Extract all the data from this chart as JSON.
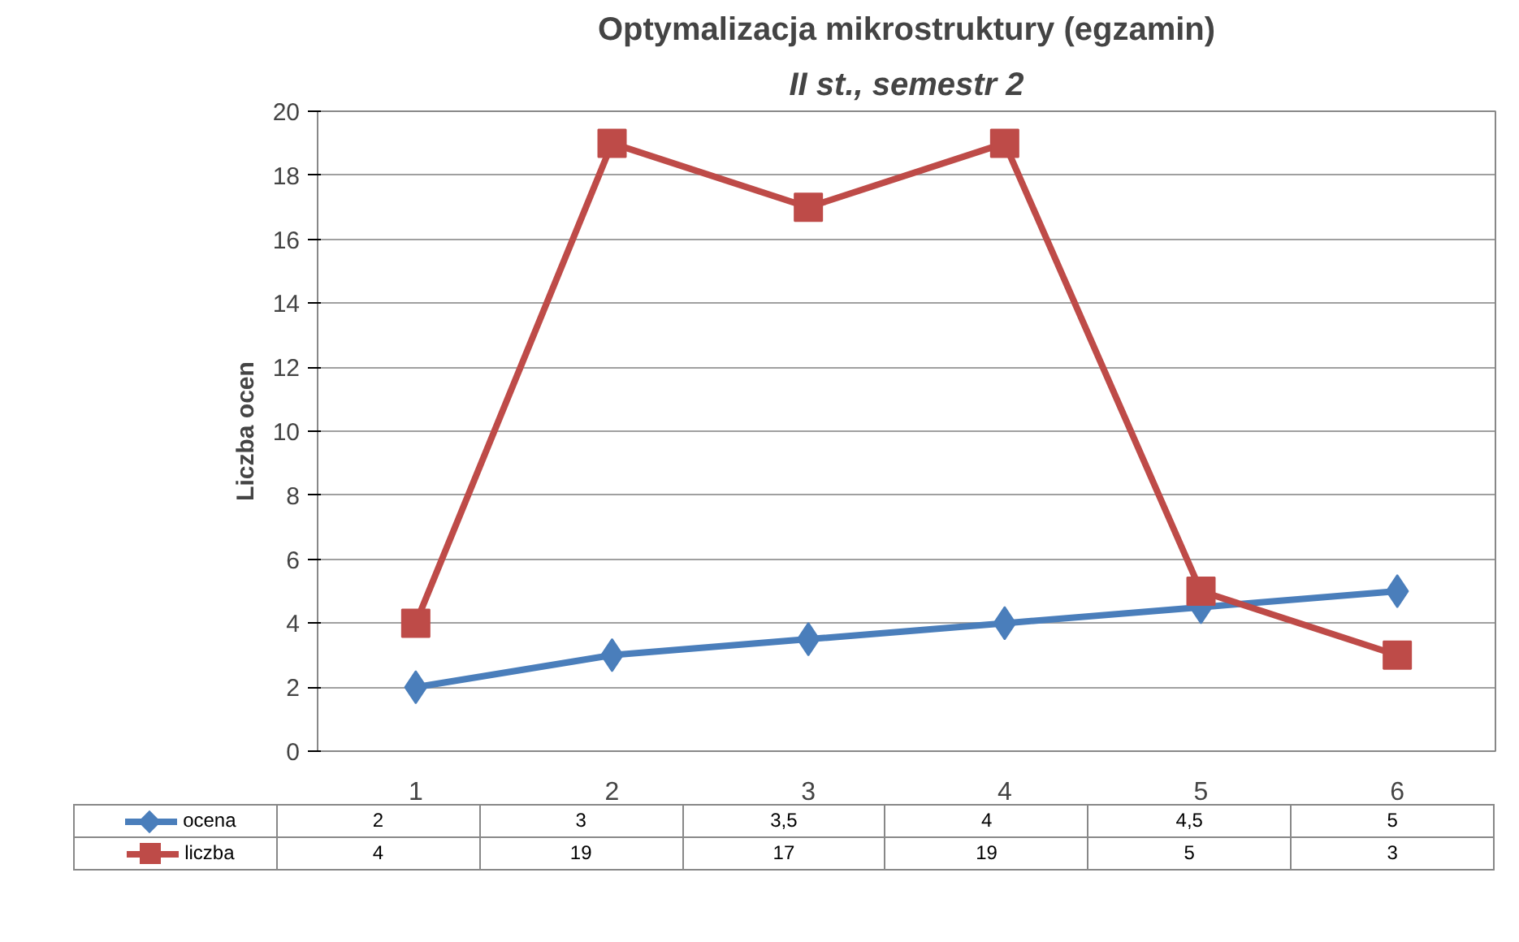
{
  "chart_data": {
    "type": "line",
    "title": "Optymalizacja mikrostruktury (egzamin)",
    "subtitle": "II st., semestr 2",
    "ylabel": "Liczba ocen",
    "categories": [
      "1",
      "2",
      "3",
      "4",
      "5",
      "6"
    ],
    "series": [
      {
        "name": "ocena",
        "color": "#4a7ebb",
        "marker": "diamond",
        "values": [
          2,
          3,
          3.5,
          4,
          4.5,
          5
        ],
        "value_labels": [
          "2",
          "3",
          "3,5",
          "4",
          "4,5",
          "5"
        ]
      },
      {
        "name": "liczba",
        "color": "#be4b48",
        "marker": "square",
        "values": [
          4,
          19,
          17,
          19,
          5,
          3
        ],
        "value_labels": [
          "4",
          "19",
          "17",
          "19",
          "5",
          "3"
        ]
      }
    ],
    "ylim": [
      0,
      20
    ],
    "yticks": [
      0,
      2,
      4,
      6,
      8,
      10,
      12,
      14,
      16,
      18,
      20
    ],
    "grid": "y",
    "legend": "bottom",
    "line_style": "solid"
  }
}
